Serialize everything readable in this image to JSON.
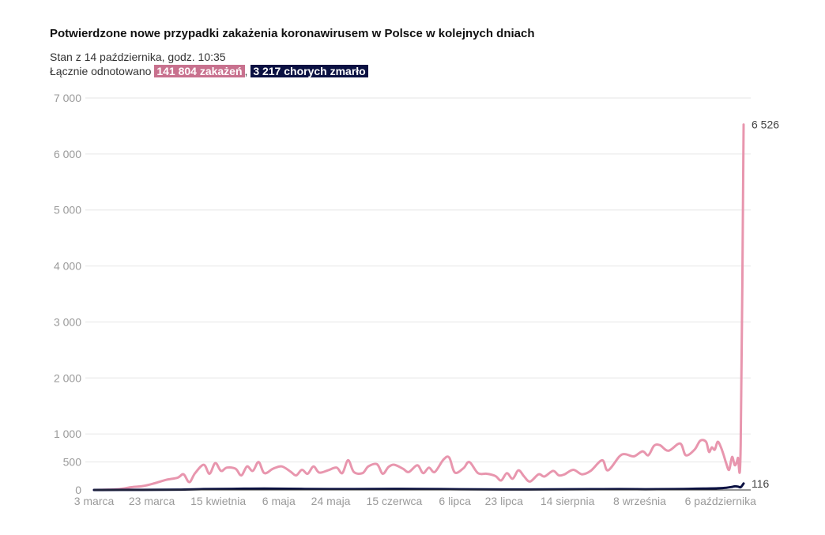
{
  "header": {
    "title": "Potwierdzone nowe przypadki zakażenia koronawirusem w Polsce w kolejnych dniach",
    "subtitle": "Stan z 14 października, godz. 10:35",
    "summary_prefix": "Łącznie odnotowano",
    "cases_badge": "141 804 zakażeń",
    "separator": ",",
    "deaths_badge": "3 217 chorych zmarło"
  },
  "chart_data": {
    "type": "line",
    "title": "Potwierdzone nowe przypadki zakażenia koronawirusem w Polsce w kolejnych dniach",
    "xlabel": "",
    "ylabel": "",
    "x_range": [
      "2020-03-03",
      "2020-10-14"
    ],
    "ylim": [
      0,
      7000
    ],
    "y_ticks": [
      0,
      500,
      1000,
      2000,
      3000,
      4000,
      5000,
      6000,
      7000
    ],
    "y_tick_labels": [
      "0",
      "500",
      "1 000",
      "2 000",
      "3 000",
      "4 000",
      "5 000",
      "6 000",
      "7 000"
    ],
    "x_ticks": [
      "2020-03-03",
      "2020-03-23",
      "2020-04-15",
      "2020-05-06",
      "2020-05-24",
      "2020-06-15",
      "2020-07-06",
      "2020-07-23",
      "2020-08-14",
      "2020-09-08",
      "2020-10-06"
    ],
    "x_tick_labels": [
      "3 marca",
      "23 marca",
      "15 kwietnia",
      "6 maja",
      "24 maja",
      "15 czerwca",
      "6 lipca",
      "23 lipca",
      "14 sierpnia",
      "8 września",
      "6 października"
    ],
    "grid": true,
    "legend": "none",
    "series": [
      {
        "color": "#e896ae",
        "end_label": "6 526",
        "points": [
          [
            "2020-03-03",
            0
          ],
          [
            "2020-03-08",
            5
          ],
          [
            "2020-03-12",
            15
          ],
          [
            "2020-03-16",
            50
          ],
          [
            "2020-03-20",
            70
          ],
          [
            "2020-03-24",
            120
          ],
          [
            "2020-03-28",
            180
          ],
          [
            "2020-04-01",
            220
          ],
          [
            "2020-04-03",
            280
          ],
          [
            "2020-04-05",
            140
          ],
          [
            "2020-04-07",
            300
          ],
          [
            "2020-04-10",
            450
          ],
          [
            "2020-04-12",
            290
          ],
          [
            "2020-04-14",
            480
          ],
          [
            "2020-04-16",
            340
          ],
          [
            "2020-04-18",
            400
          ],
          [
            "2020-04-21",
            380
          ],
          [
            "2020-04-23",
            260
          ],
          [
            "2020-04-25",
            420
          ],
          [
            "2020-04-27",
            340
          ],
          [
            "2020-04-29",
            500
          ],
          [
            "2020-05-01",
            300
          ],
          [
            "2020-05-04",
            380
          ],
          [
            "2020-05-07",
            420
          ],
          [
            "2020-05-10",
            330
          ],
          [
            "2020-05-12",
            260
          ],
          [
            "2020-05-14",
            360
          ],
          [
            "2020-05-16",
            290
          ],
          [
            "2020-05-18",
            420
          ],
          [
            "2020-05-20",
            310
          ],
          [
            "2020-05-23",
            350
          ],
          [
            "2020-05-26",
            400
          ],
          [
            "2020-05-28",
            300
          ],
          [
            "2020-05-30",
            530
          ],
          [
            "2020-06-01",
            320
          ],
          [
            "2020-06-04",
            300
          ],
          [
            "2020-06-06",
            420
          ],
          [
            "2020-06-09",
            460
          ],
          [
            "2020-06-11",
            290
          ],
          [
            "2020-06-13",
            410
          ],
          [
            "2020-06-15",
            450
          ],
          [
            "2020-06-18",
            380
          ],
          [
            "2020-06-20",
            320
          ],
          [
            "2020-06-23",
            440
          ],
          [
            "2020-06-25",
            300
          ],
          [
            "2020-06-27",
            400
          ],
          [
            "2020-06-29",
            320
          ],
          [
            "2020-07-02",
            540
          ],
          [
            "2020-07-04",
            580
          ],
          [
            "2020-07-06",
            310
          ],
          [
            "2020-07-09",
            390
          ],
          [
            "2020-07-11",
            500
          ],
          [
            "2020-07-14",
            300
          ],
          [
            "2020-07-17",
            290
          ],
          [
            "2020-07-20",
            250
          ],
          [
            "2020-07-22",
            170
          ],
          [
            "2020-07-24",
            300
          ],
          [
            "2020-07-26",
            200
          ],
          [
            "2020-07-28",
            350
          ],
          [
            "2020-07-30",
            240
          ],
          [
            "2020-08-01",
            150
          ],
          [
            "2020-08-04",
            280
          ],
          [
            "2020-08-06",
            240
          ],
          [
            "2020-08-09",
            340
          ],
          [
            "2020-08-11",
            260
          ],
          [
            "2020-08-13",
            280
          ],
          [
            "2020-08-16",
            360
          ],
          [
            "2020-08-19",
            280
          ],
          [
            "2020-08-22",
            340
          ],
          [
            "2020-08-26",
            530
          ],
          [
            "2020-08-28",
            350
          ],
          [
            "2020-09-01",
            600
          ],
          [
            "2020-09-03",
            640
          ],
          [
            "2020-09-06",
            600
          ],
          [
            "2020-09-09",
            690
          ],
          [
            "2020-09-11",
            620
          ],
          [
            "2020-09-13",
            790
          ],
          [
            "2020-09-15",
            800
          ],
          [
            "2020-09-18",
            700
          ],
          [
            "2020-09-22",
            830
          ],
          [
            "2020-09-24",
            620
          ],
          [
            "2020-09-27",
            720
          ],
          [
            "2020-09-29",
            880
          ],
          [
            "2020-10-01",
            860
          ],
          [
            "2020-10-02",
            680
          ],
          [
            "2020-10-03",
            760
          ],
          [
            "2020-10-04",
            720
          ],
          [
            "2020-10-05",
            860
          ],
          [
            "2020-10-06",
            780
          ],
          [
            "2020-10-07",
            640
          ],
          [
            "2020-10-08",
            470
          ],
          [
            "2020-10-09",
            360
          ],
          [
            "2020-10-10",
            590
          ],
          [
            "2020-10-11",
            440
          ],
          [
            "2020-10-12",
            570
          ],
          [
            "2020-10-13",
            800
          ],
          [
            "2020-10-14",
            6526
          ]
        ]
      },
      {
        "color": "#0b1142",
        "end_label": "116",
        "points": [
          [
            "2020-03-03",
            0
          ],
          [
            "2020-03-20",
            2
          ],
          [
            "2020-04-01",
            5
          ],
          [
            "2020-04-10",
            15
          ],
          [
            "2020-04-20",
            20
          ],
          [
            "2020-05-01",
            25
          ],
          [
            "2020-05-15",
            18
          ],
          [
            "2020-06-01",
            15
          ],
          [
            "2020-06-15",
            20
          ],
          [
            "2020-07-01",
            15
          ],
          [
            "2020-07-15",
            10
          ],
          [
            "2020-08-01",
            8
          ],
          [
            "2020-08-15",
            12
          ],
          [
            "2020-09-01",
            15
          ],
          [
            "2020-09-10",
            12
          ],
          [
            "2020-09-20",
            15
          ],
          [
            "2020-09-25",
            20
          ],
          [
            "2020-10-01",
            25
          ],
          [
            "2020-10-05",
            30
          ],
          [
            "2020-10-08",
            40
          ],
          [
            "2020-10-10",
            55
          ],
          [
            "2020-10-11",
            65
          ],
          [
            "2020-10-12",
            60
          ],
          [
            "2020-10-13",
            50
          ],
          [
            "2020-10-14",
            116
          ]
        ]
      }
    ]
  }
}
